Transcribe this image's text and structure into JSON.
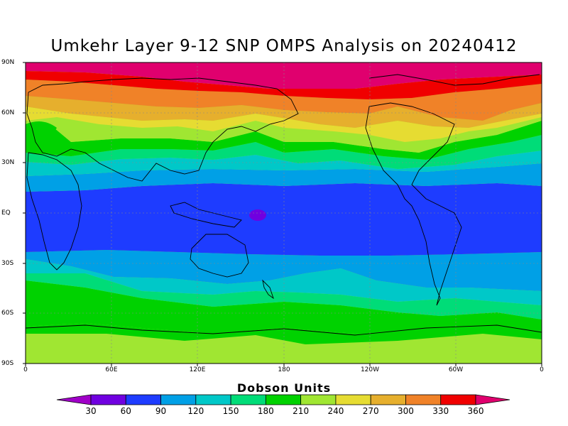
{
  "title": "Umkehr Layer 9-12 SNP OMPS Analysis on 20240412",
  "lat_labels": [
    "90N",
    "60N",
    "30N",
    "EQ",
    "30S",
    "60S",
    "90S"
  ],
  "lon_labels": [
    "0",
    "60E",
    "120E",
    "180",
    "120W",
    "60W",
    "0"
  ],
  "colorbar": {
    "title": "Dobson Units",
    "ticks": [
      "30",
      "60",
      "90",
      "120",
      "150",
      "180",
      "210",
      "240",
      "270",
      "300",
      "330",
      "360"
    ],
    "colors": [
      "#a000c8",
      "#7000e0",
      "#1e3cff",
      "#00a0e6",
      "#00c8c8",
      "#00dc78",
      "#00d200",
      "#a0e632",
      "#e6dc32",
      "#e6af2d",
      "#f08228",
      "#f00000",
      "#e0006e"
    ]
  }
}
